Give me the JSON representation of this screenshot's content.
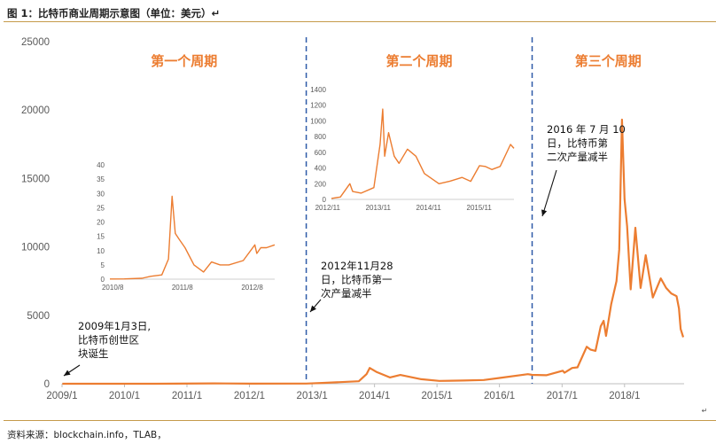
{
  "figure_title": "图 1：比特币商业周期示意图（单位：美元）↵",
  "source_note": "资料来源：blockchain.info，TLAB，",
  "chart_data": {
    "type": "line",
    "title": "",
    "xlabel": "",
    "ylabel": "",
    "line_color": "#ec7d31",
    "grid": false,
    "x_ticks": [
      "2009/1",
      "2010/1",
      "2011/1",
      "2012/1",
      "2013/1",
      "2014/1",
      "2015/1",
      "2016/1",
      "2017/1",
      "2018/1"
    ],
    "y_ticks": [
      0,
      5000,
      10000,
      15000,
      20000,
      25000
    ],
    "xlim": [
      "2009-01-01",
      "2018-12-15"
    ],
    "ylim": [
      0,
      25000
    ],
    "series": [
      {
        "x": [
          "2009-01-03",
          "2010-07-01",
          "2011-06-08",
          "2012-01-01",
          "2012-11-28",
          "2013-03-01",
          "2013-10-01",
          "2013-11-15",
          "2013-12-04",
          "2014-01-15",
          "2014-04-01",
          "2014-06-01",
          "2014-10-01",
          "2015-01-15",
          "2015-06-01",
          "2015-10-01",
          "2016-01-01",
          "2016-06-15",
          "2016-07-10",
          "2016-10-01",
          "2017-01-05",
          "2017-01-15",
          "2017-03-01",
          "2017-04-01",
          "2017-05-25",
          "2017-06-15",
          "2017-07-15",
          "2017-08-15",
          "2017-09-01",
          "2017-09-15",
          "2017-10-15",
          "2017-11-15",
          "2017-12-01",
          "2017-12-17",
          "2018-01-01",
          "2018-01-16",
          "2018-02-06",
          "2018-03-05",
          "2018-04-05",
          "2018-05-05",
          "2018-06-15",
          "2018-08-01",
          "2018-09-01",
          "2018-10-01",
          "2018-11-01",
          "2018-11-15",
          "2018-11-25",
          "2018-12-10"
        ],
        "values": [
          0,
          0.1,
          29,
          6,
          12,
          60,
          180,
          700,
          1150,
          850,
          460,
          640,
          330,
          210,
          230,
          270,
          420,
          700,
          650,
          620,
          950,
          800,
          1150,
          1200,
          2700,
          2500,
          2400,
          4200,
          4600,
          3500,
          5800,
          7500,
          9800,
          19300,
          13500,
          11500,
          6900,
          11400,
          7000,
          9400,
          6300,
          7700,
          7000,
          6600,
          6400,
          5500,
          4000,
          3400
        ]
      }
    ],
    "cycle_labels": [
      "第一个周期",
      "第二个周期",
      "第三个周期"
    ],
    "halving_dates": [
      "2012-11-28",
      "2016-07-10"
    ],
    "annotations": [
      {
        "lines": [
          "2009年1月3日,",
          "比特币创世区",
          "块诞生"
        ],
        "date": "2009-01-03"
      },
      {
        "lines": [
          "2012年11月28",
          "日，比特币第一",
          "次产量减半"
        ],
        "date": "2012-11-28"
      },
      {
        "lines": [
          "2016 年 7 月 10",
          "日，比特币第",
          "二次产量减半"
        ],
        "date": "2016-07-10"
      }
    ],
    "insets": [
      {
        "x_ticks": [
          "2010/8",
          "2011/8",
          "2012/8"
        ],
        "y_ticks": [
          0,
          5,
          10,
          15,
          20,
          25,
          30,
          35,
          40
        ],
        "xlim": [
          "2010-07-17",
          "2012-11-27"
        ],
        "ylim": [
          0,
          40
        ],
        "x": [
          "2010-07-17",
          "2010-10-01",
          "2011-01-01",
          "2011-02-15",
          "2011-04-15",
          "2011-05-20",
          "2011-06-08",
          "2011-06-25",
          "2011-07-15",
          "2011-08-15",
          "2011-10-01",
          "2011-11-20",
          "2012-01-01",
          "2012-02-15",
          "2012-04-01",
          "2012-06-15",
          "2012-08-15",
          "2012-08-25",
          "2012-09-15",
          "2012-10-15",
          "2012-11-27"
        ],
        "values": [
          0.05,
          0.1,
          0.3,
          1.0,
          1.5,
          7,
          29,
          16,
          14,
          11,
          5,
          2.5,
          6,
          5,
          5,
          6.5,
          12,
          9,
          11,
          11,
          12
        ]
      },
      {
        "x_ticks": [
          "2012/11",
          "2013/11",
          "2014/11",
          "2015/11"
        ],
        "y_ticks": [
          0,
          200,
          400,
          600,
          800,
          1000,
          1200,
          1400
        ],
        "xlim": [
          "2012-11-28",
          "2016-07-10"
        ],
        "ylim": [
          0,
          1400
        ],
        "x": [
          "2012-11-28",
          "2013-02-01",
          "2013-04-10",
          "2013-05-01",
          "2013-07-01",
          "2013-10-01",
          "2013-11-15",
          "2013-12-04",
          "2013-12-18",
          "2014-01-15",
          "2014-02-25",
          "2014-04-01",
          "2014-06-01",
          "2014-08-01",
          "2014-10-01",
          "2015-01-15",
          "2015-04-01",
          "2015-07-01",
          "2015-09-01",
          "2015-11-04",
          "2015-12-15",
          "2016-02-01",
          "2016-04-01",
          "2016-06-15",
          "2016-07-10"
        ],
        "values": [
          12,
          30,
          200,
          100,
          80,
          150,
          700,
          1150,
          550,
          850,
          550,
          460,
          640,
          550,
          330,
          200,
          230,
          280,
          230,
          430,
          420,
          380,
          420,
          700,
          650
        ]
      }
    ]
  }
}
